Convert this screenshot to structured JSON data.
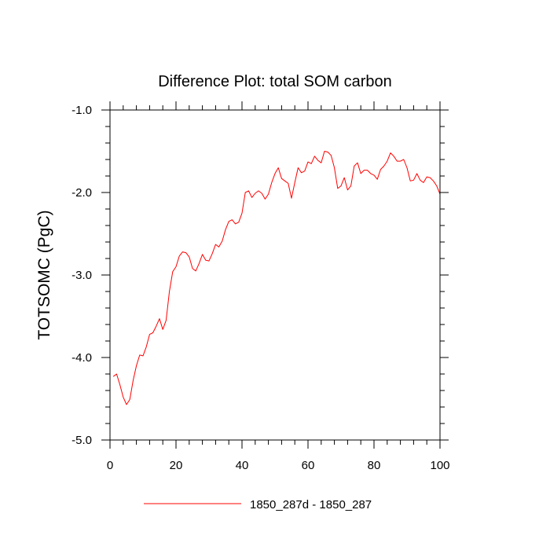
{
  "chart_data": {
    "type": "line",
    "title": "Difference Plot: total SOM carbon",
    "xlabel": "",
    "ylabel": "TOTSOMC  (PgC)",
    "xlim": [
      0,
      100
    ],
    "ylim": [
      -5.0,
      -1.0
    ],
    "x_ticks": [
      0,
      20,
      40,
      60,
      80,
      100
    ],
    "x_tick_labels": [
      "0",
      "20",
      "40",
      "60",
      "80",
      "100"
    ],
    "y_ticks": [
      -5.0,
      -4.0,
      -3.0,
      -2.0,
      -1.0
    ],
    "y_tick_labels": [
      "-5.0",
      "-4.0",
      "-3.0",
      "-2.0",
      "-1.0"
    ],
    "grid": false,
    "legend_position": "bottom-center",
    "series": [
      {
        "name": "1850_287d - 1850_287",
        "color": "#ff0000",
        "x": [
          1,
          2,
          3,
          4,
          5,
          6,
          7,
          8,
          9,
          10,
          11,
          12,
          13,
          14,
          15,
          16,
          17,
          18,
          19,
          20,
          21,
          22,
          23,
          24,
          25,
          26,
          27,
          28,
          29,
          30,
          31,
          32,
          33,
          34,
          35,
          36,
          37,
          38,
          39,
          40,
          41,
          42,
          43,
          44,
          45,
          46,
          47,
          48,
          49,
          50,
          51,
          52,
          53,
          54,
          55,
          56,
          57,
          58,
          59,
          60,
          61,
          62,
          63,
          64,
          65,
          66,
          67,
          68,
          69,
          70,
          71,
          72,
          73,
          74,
          75,
          76,
          77,
          78,
          79,
          80,
          81,
          82,
          83,
          84,
          85,
          86,
          87,
          88,
          89,
          90,
          91,
          92,
          93,
          94,
          95,
          96,
          97,
          98,
          99,
          100
        ],
        "values": [
          -4.23,
          -4.2,
          -4.33,
          -4.48,
          -4.57,
          -4.51,
          -4.28,
          -4.1,
          -3.97,
          -3.98,
          -3.87,
          -3.72,
          -3.7,
          -3.62,
          -3.53,
          -3.66,
          -3.55,
          -3.2,
          -2.96,
          -2.9,
          -2.77,
          -2.72,
          -2.73,
          -2.78,
          -2.92,
          -2.95,
          -2.86,
          -2.75,
          -2.82,
          -2.83,
          -2.74,
          -2.63,
          -2.66,
          -2.59,
          -2.45,
          -2.35,
          -2.33,
          -2.38,
          -2.36,
          -2.25,
          -2.0,
          -1.98,
          -2.06,
          -2.01,
          -1.98,
          -2.01,
          -2.08,
          -2.02,
          -1.88,
          -1.77,
          -1.7,
          -1.83,
          -1.86,
          -1.89,
          -2.07,
          -1.88,
          -1.7,
          -1.76,
          -1.74,
          -1.63,
          -1.65,
          -1.56,
          -1.61,
          -1.64,
          -1.5,
          -1.51,
          -1.55,
          -1.7,
          -1.95,
          -1.92,
          -1.82,
          -1.97,
          -1.92,
          -1.68,
          -1.64,
          -1.77,
          -1.73,
          -1.73,
          -1.77,
          -1.79,
          -1.84,
          -1.72,
          -1.68,
          -1.62,
          -1.52,
          -1.56,
          -1.62,
          -1.62,
          -1.6,
          -1.7,
          -1.86,
          -1.85,
          -1.77,
          -1.85,
          -1.88,
          -1.81,
          -1.82,
          -1.86,
          -1.92,
          -2.02
        ]
      }
    ]
  }
}
